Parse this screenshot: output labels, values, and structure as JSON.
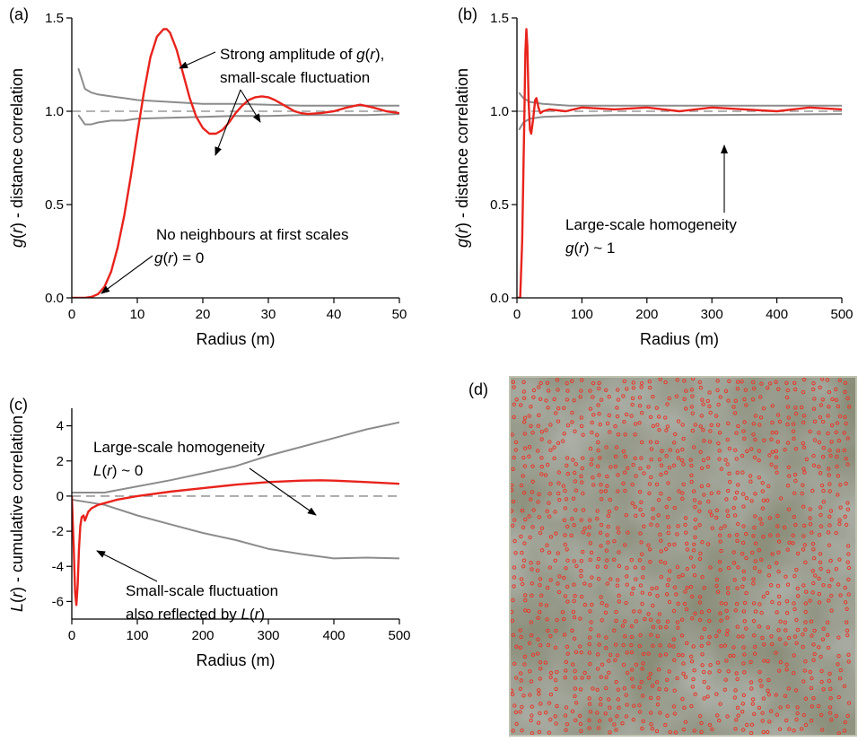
{
  "panel_labels": [
    "(a)",
    "(b)",
    "(c)",
    "(d)"
  ],
  "colors": {
    "observed": "#e8231c",
    "envelope": "#8c8c8c",
    "reference": "#9a9a9a",
    "axis": "#000000"
  },
  "chart_data": [
    {
      "panel": "(a)",
      "type": "line",
      "xlabel": "Radius (m)",
      "ylabel_parts": [
        "g(",
        "r",
        ") - distance correlation"
      ],
      "xlim": [
        0,
        50
      ],
      "ylim": [
        0,
        1.5
      ],
      "xticks": [
        "0",
        "10",
        "20",
        "30",
        "40",
        "50"
      ],
      "yticks": [
        "0.0",
        "0.5",
        "1.0",
        "1.5"
      ],
      "reference_line": 1.0,
      "series": [
        {
          "role": "observed",
          "x": [
            0,
            2,
            3,
            4,
            5,
            6,
            7,
            8,
            9,
            10,
            11,
            12,
            13,
            14,
            14.5,
            15,
            16,
            17,
            18,
            19,
            20,
            21,
            22,
            23,
            24,
            25,
            26,
            27,
            28,
            29,
            30,
            31,
            32,
            33,
            34,
            35,
            36,
            38,
            40,
            42,
            44,
            46,
            48,
            50
          ],
          "y": [
            0,
            0,
            0.005,
            0.02,
            0.06,
            0.14,
            0.27,
            0.44,
            0.65,
            0.88,
            1.1,
            1.29,
            1.4,
            1.44,
            1.44,
            1.42,
            1.33,
            1.2,
            1.07,
            0.97,
            0.91,
            0.88,
            0.88,
            0.9,
            0.94,
            0.99,
            1.03,
            1.06,
            1.075,
            1.08,
            1.075,
            1.06,
            1.04,
            1.02,
            1.0,
            0.99,
            0.985,
            0.99,
            1.0,
            1.02,
            1.035,
            1.02,
            1.0,
            0.99
          ]
        },
        {
          "role": "upper envelope",
          "x": [
            1,
            2,
            3,
            4,
            6,
            8,
            10,
            15,
            20,
            25,
            30,
            35,
            40,
            45,
            50
          ],
          "y": [
            1.23,
            1.12,
            1.1,
            1.09,
            1.08,
            1.07,
            1.06,
            1.05,
            1.04,
            1.04,
            1.035,
            1.03,
            1.03,
            1.03,
            1.03
          ]
        },
        {
          "role": "lower envelope",
          "x": [
            1,
            2,
            3,
            4,
            6,
            8,
            10,
            15,
            20,
            25,
            30,
            35,
            40,
            45,
            50
          ],
          "y": [
            0.98,
            0.93,
            0.93,
            0.94,
            0.95,
            0.95,
            0.96,
            0.965,
            0.97,
            0.975,
            0.975,
            0.98,
            0.98,
            0.98,
            0.985
          ]
        }
      ],
      "annotations": [
        {
          "lines": [
            [
              "Strong amplitude of ",
              "g(r)",
              ","
            ],
            [
              "small-scale fluctuation"
            ]
          ]
        },
        {
          "lines": [
            [
              "No neighbours at first scales"
            ],
            [
              "g(r)",
              " = 0"
            ]
          ]
        }
      ]
    },
    {
      "panel": "(b)",
      "type": "line",
      "xlabel": "Radius (m)",
      "ylabel_parts": [
        "g(",
        "r",
        ") - distance correlation"
      ],
      "xlim": [
        0,
        500
      ],
      "ylim": [
        0,
        1.5
      ],
      "xticks": [
        "0",
        "100",
        "200",
        "300",
        "400",
        "500"
      ],
      "yticks": [
        "0.0",
        "0.5",
        "1.0",
        "1.5"
      ],
      "reference_line": 1.0,
      "series": [
        {
          "role": "observed",
          "x": [
            0,
            5,
            8,
            11,
            13,
            14.5,
            16,
            18,
            20,
            22,
            25,
            28,
            30,
            33,
            36,
            40,
            50,
            75,
            100,
            150,
            200,
            250,
            300,
            350,
            400,
            450,
            500
          ],
          "y": [
            0,
            0,
            0.3,
            0.9,
            1.32,
            1.44,
            1.35,
            1.05,
            0.9,
            0.88,
            0.96,
            1.06,
            1.07,
            1.02,
            0.99,
            1.0,
            1.01,
            1.0,
            1.02,
            1.01,
            1.02,
            1.0,
            1.02,
            1.01,
            1.0,
            1.02,
            1.01
          ]
        },
        {
          "role": "upper envelope",
          "x": [
            3,
            10,
            20,
            40,
            80,
            150,
            300,
            500
          ],
          "y": [
            1.1,
            1.07,
            1.05,
            1.04,
            1.03,
            1.03,
            1.03,
            1.03
          ]
        },
        {
          "role": "lower envelope",
          "x": [
            3,
            10,
            20,
            40,
            80,
            150,
            300,
            500
          ],
          "y": [
            0.9,
            0.94,
            0.96,
            0.97,
            0.975,
            0.98,
            0.98,
            0.985
          ]
        }
      ],
      "annotations": [
        {
          "lines": [
            [
              "Large-scale homogeneity"
            ],
            [
              "g(r)",
              " ~ 1"
            ]
          ]
        }
      ]
    },
    {
      "panel": "(c)",
      "type": "line",
      "xlabel": "Radius (m)",
      "ylabel_parts": [
        "L(",
        "r",
        ") - cumulative correlation"
      ],
      "xlim": [
        0,
        500
      ],
      "ylim": [
        -7,
        5
      ],
      "xticks": [
        "0",
        "100",
        "200",
        "300",
        "400",
        "500"
      ],
      "yticks": [
        "-6",
        "-4",
        "-2",
        "0",
        "2",
        "4"
      ],
      "reference_line": 0,
      "series": [
        {
          "role": "observed",
          "x": [
            0,
            3,
            5,
            7,
            9,
            11,
            13,
            15,
            18,
            20,
            22,
            25,
            30,
            40,
            50,
            70,
            100,
            150,
            200,
            250,
            300,
            350,
            380,
            400,
            450,
            500
          ],
          "y": [
            0,
            -3,
            -5.5,
            -6.2,
            -5,
            -3,
            -1.7,
            -1.2,
            -1.1,
            -1.4,
            -1.2,
            -0.9,
            -0.7,
            -0.5,
            -0.4,
            -0.2,
            0,
            0.25,
            0.45,
            0.65,
            0.8,
            0.88,
            0.9,
            0.88,
            0.8,
            0.7
          ]
        },
        {
          "role": "upper envelope",
          "x": [
            0,
            50,
            100,
            150,
            200,
            250,
            300,
            350,
            400,
            450,
            500
          ],
          "y": [
            0.2,
            0.2,
            0.55,
            0.9,
            1.3,
            1.7,
            2.3,
            2.8,
            3.3,
            3.8,
            4.2
          ]
        },
        {
          "role": "lower envelope",
          "x": [
            0,
            50,
            100,
            150,
            200,
            250,
            300,
            350,
            400,
            450,
            500
          ],
          "y": [
            -0.2,
            -0.5,
            -1.1,
            -1.6,
            -2.1,
            -2.5,
            -3.0,
            -3.3,
            -3.55,
            -3.5,
            -3.55
          ]
        }
      ],
      "annotations": [
        {
          "lines": [
            [
              "Large-scale homogeneity"
            ],
            [
              "L(r)",
              " ~ 0"
            ]
          ]
        },
        {
          "lines": [
            [
              "Small-scale fluctuation"
            ],
            [
              "also reflected by ",
              "L(r)"
            ]
          ]
        }
      ]
    }
  ]
}
